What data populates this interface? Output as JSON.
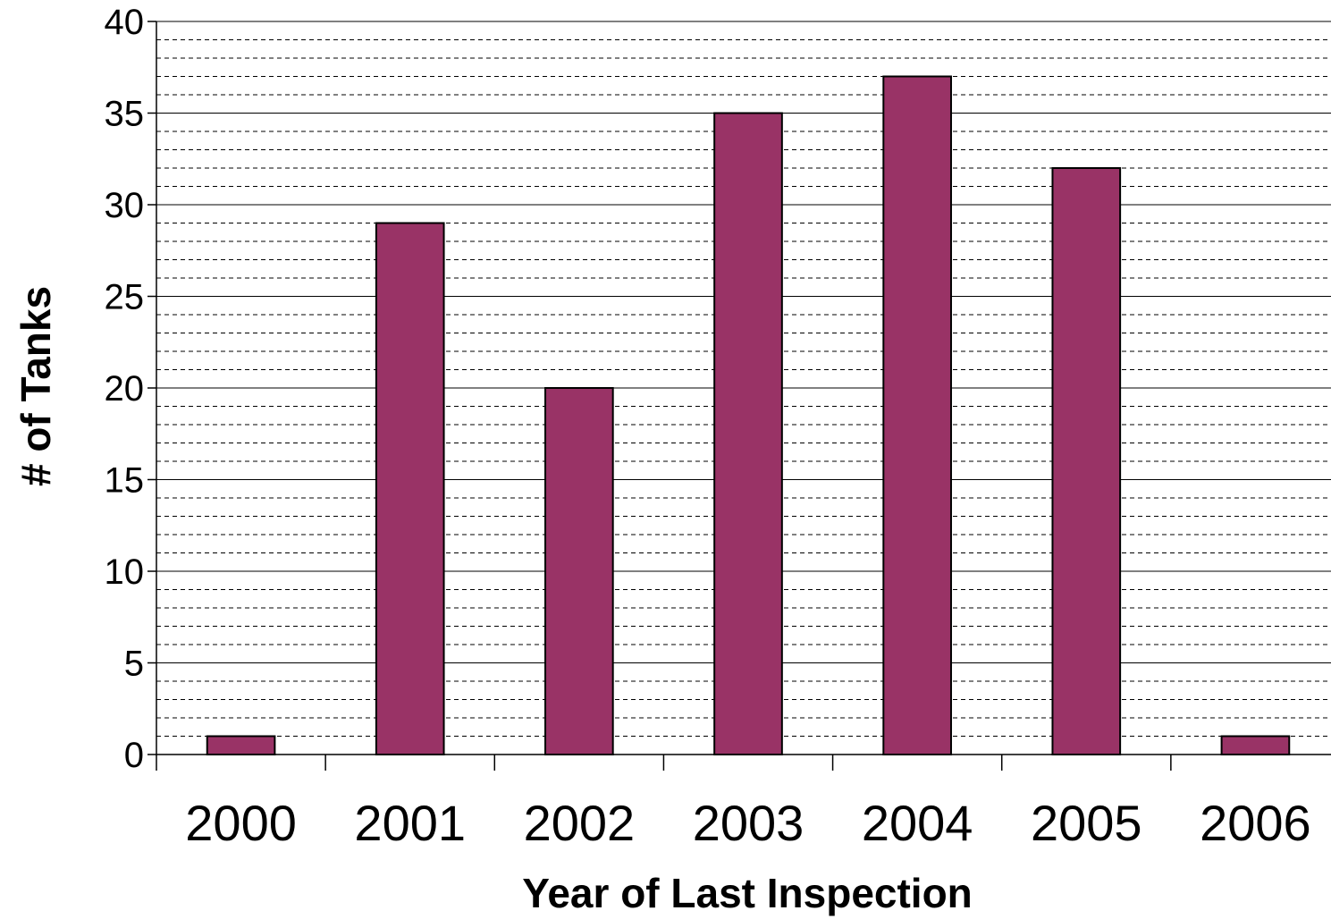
{
  "chart_data": {
    "type": "bar",
    "title": "",
    "xlabel": "Year of Last Inspection",
    "ylabel": "# of Tanks",
    "categories": [
      "2000",
      "2001",
      "2002",
      "2003",
      "2004",
      "2005",
      "2006"
    ],
    "values": [
      1,
      29,
      20,
      35,
      37,
      32,
      1
    ],
    "ylim": [
      0,
      40
    ],
    "yticks": [
      "0",
      "5",
      "10",
      "15",
      "20",
      "25",
      "30",
      "35",
      "40"
    ],
    "major_grid_step": 5,
    "minor_grid_step": 1,
    "grid": true,
    "legend": false,
    "colors": {
      "bar": "#993366",
      "bar_outline": "#000000",
      "major_grid": "#000000",
      "minor_grid": "#000000"
    }
  }
}
